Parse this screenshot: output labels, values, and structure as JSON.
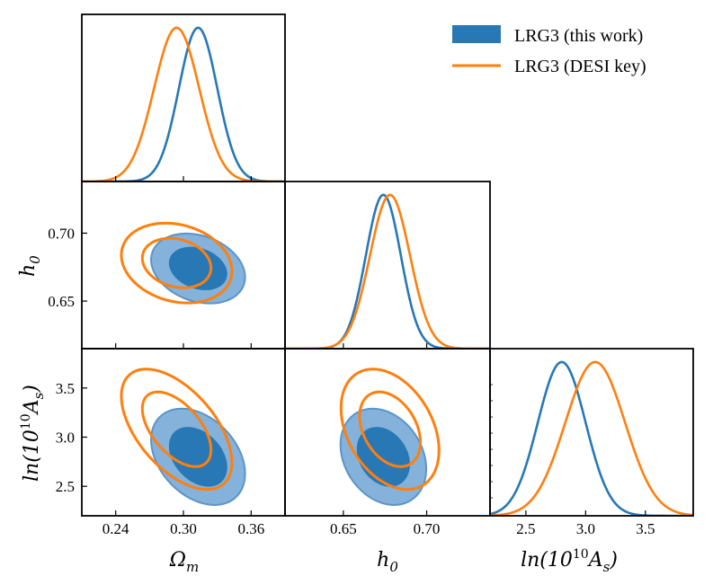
{
  "chart_data": {
    "type": "corner",
    "parameters": [
      {
        "key": "om",
        "label_base": "Ω",
        "label_sub": "m",
        "range": [
          0.21,
          0.39
        ],
        "ticks": [
          0.24,
          0.3,
          0.36
        ],
        "tick_labels": [
          "0.24",
          "0.30",
          "0.36"
        ]
      },
      {
        "key": "h",
        "label_base": "h",
        "label_sub": "0",
        "range": [
          0.615,
          0.738
        ],
        "ticks": [
          0.65,
          0.7
        ],
        "tick_labels": [
          "0.65",
          "0.70"
        ]
      },
      {
        "key": "as",
        "label_text": "ln(10",
        "label_sup": "10",
        "label_tail": "A",
        "label_sub": "s",
        "label_close": ")",
        "range": [
          2.2,
          3.9
        ],
        "ticks": [
          2.5,
          3.0,
          3.5
        ],
        "tick_labels": [
          "2.5",
          "3.0",
          "3.5"
        ]
      }
    ],
    "series": [
      {
        "name": "LRG3 (this work)",
        "color": "#2878b5",
        "style": "filled",
        "mean": {
          "om": 0.313,
          "h": 0.674,
          "as": 2.8
        },
        "sigma": {
          "om": 0.017,
          "h": 0.0105,
          "as": 0.2
        },
        "corr": {
          "om_h": -0.25,
          "om_as": -0.35,
          "h_as": -0.25
        }
      },
      {
        "name": "LRG3 (DESI key)",
        "color": "#ff7f0e",
        "style": "lines",
        "mean": {
          "om": 0.294,
          "h": 0.678,
          "as": 3.08
        },
        "sigma": {
          "om": 0.02,
          "h": 0.012,
          "as": 0.25
        },
        "corr": {
          "om_h": -0.2,
          "om_as": -0.55,
          "h_as": -0.35
        }
      }
    ],
    "contour_levels": [
      "68%",
      "95%"
    ],
    "legend": {
      "position": "top-right",
      "entries": [
        {
          "label": "LRG3 (this work)",
          "marker": "patch",
          "color": "#2878b5"
        },
        {
          "label": "LRG3 (DESI key)",
          "marker": "line",
          "color": "#ff7f0e"
        }
      ]
    }
  }
}
